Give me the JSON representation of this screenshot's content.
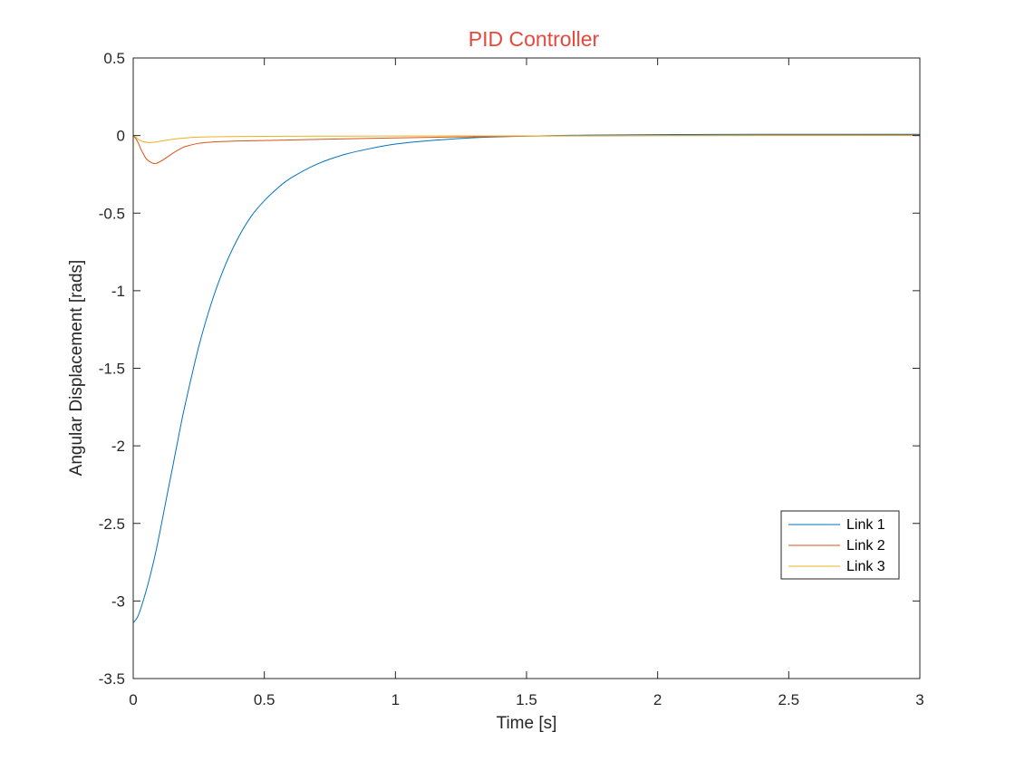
{
  "chart_data": {
    "type": "line",
    "title": "PID Controller",
    "title_color": "#e8473c",
    "xlabel": "Time [s]",
    "ylabel": "Angular Displacement [rads]",
    "xlim": [
      0,
      3
    ],
    "ylim": [
      -3.5,
      0.5
    ],
    "xticks": [
      0,
      0.5,
      1,
      1.5,
      2,
      2.5,
      3
    ],
    "xtick_labels": [
      "0",
      "0.5",
      "1",
      "1.5",
      "2",
      "2.5",
      "3"
    ],
    "yticks": [
      0.5,
      0,
      -0.5,
      -1,
      -1.5,
      -2,
      -2.5,
      -3,
      -3.5
    ],
    "ytick_labels": [
      "0.5",
      "0",
      "-0.5",
      "-1",
      "-1.5",
      "-2",
      "-2.5",
      "-3",
      "-3.5"
    ],
    "grid": false,
    "box": true,
    "legend_position": "lower-right",
    "series": [
      {
        "name": "Link 1",
        "color": "#0072bd",
        "x": [
          0,
          0.02,
          0.05,
          0.08,
          0.1,
          0.13,
          0.15,
          0.18,
          0.2,
          0.25,
          0.3,
          0.35,
          0.4,
          0.45,
          0.5,
          0.55,
          0.6,
          0.7,
          0.8,
          0.9,
          1.0,
          1.1,
          1.2,
          1.3,
          1.4,
          1.5,
          1.6,
          1.7,
          1.8,
          2.0,
          2.2,
          2.5,
          2.8,
          3.0
        ],
        "y": [
          -3.14,
          -3.09,
          -2.93,
          -2.73,
          -2.57,
          -2.31,
          -2.14,
          -1.88,
          -1.72,
          -1.36,
          -1.07,
          -0.84,
          -0.66,
          -0.52,
          -0.42,
          -0.34,
          -0.275,
          -0.185,
          -0.125,
          -0.085,
          -0.055,
          -0.037,
          -0.024,
          -0.014,
          -0.008,
          -0.004,
          0.0,
          0.002,
          0.004,
          0.006,
          0.007,
          0.008,
          0.008,
          0.008
        ]
      },
      {
        "name": "Link 2",
        "color": "#d95319",
        "x": [
          0,
          0.01,
          0.02,
          0.03,
          0.05,
          0.07,
          0.08,
          0.09,
          0.1,
          0.12,
          0.15,
          0.18,
          0.2,
          0.25,
          0.3,
          0.35,
          0.4,
          0.5,
          0.7,
          1.0,
          1.3,
          1.5,
          1.7,
          2.0,
          2.5,
          3.0
        ],
        "y": [
          0.0,
          -0.02,
          -0.05,
          -0.09,
          -0.15,
          -0.175,
          -0.18,
          -0.178,
          -0.17,
          -0.15,
          -0.115,
          -0.085,
          -0.07,
          -0.05,
          -0.042,
          -0.038,
          -0.035,
          -0.032,
          -0.025,
          -0.015,
          -0.008,
          -0.004,
          -0.002,
          0.0,
          0.002,
          0.003
        ]
      },
      {
        "name": "Link 3",
        "color": "#edb120",
        "x": [
          0,
          0.01,
          0.02,
          0.04,
          0.06,
          0.08,
          0.1,
          0.12,
          0.15,
          0.2,
          0.25,
          0.3,
          0.4,
          0.5,
          0.7,
          1.0,
          1.5,
          2.0,
          2.5,
          3.0
        ],
        "y": [
          0.0,
          -0.01,
          -0.025,
          -0.04,
          -0.045,
          -0.043,
          -0.038,
          -0.032,
          -0.024,
          -0.015,
          -0.01,
          -0.008,
          -0.006,
          -0.005,
          -0.004,
          -0.003,
          -0.002,
          -0.001,
          0.0,
          0.0
        ]
      }
    ]
  }
}
